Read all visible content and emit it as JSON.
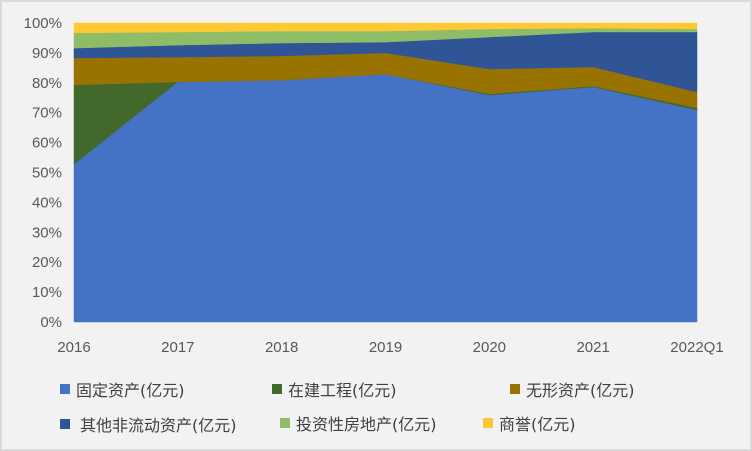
{
  "chart_data": {
    "type": "area",
    "stacked": "percent",
    "title": "",
    "xlabel": "",
    "ylabel": "",
    "ylim": [
      0,
      100
    ],
    "y_ticks": [
      "0%",
      "10%",
      "20%",
      "30%",
      "40%",
      "50%",
      "60%",
      "70%",
      "80%",
      "90%",
      "100%"
    ],
    "categories": [
      "2016",
      "2017",
      "2018",
      "2019",
      "2020",
      "2021",
      "2022Q1"
    ],
    "grid": false,
    "legend_position": "bottom",
    "series": [
      {
        "name": "固定资产(亿元)",
        "color": "#4472c4",
        "values": [
          52.8,
          80.3,
          80.9,
          82.9,
          75.9,
          78.6,
          70.9
        ]
      },
      {
        "name": "在建工程(亿元)",
        "color": "#43682b",
        "values": [
          26.5,
          0.0,
          0.0,
          0.0,
          0.4,
          0.3,
          0.7
        ]
      },
      {
        "name": "无形资产(亿元)",
        "color": "#997300",
        "values": [
          9.0,
          8.3,
          8.1,
          7.1,
          8.3,
          6.4,
          5.3
        ]
      },
      {
        "name": "其他非流动资产(亿元)",
        "color": "#2f5597",
        "values": [
          3.3,
          4.0,
          4.3,
          3.6,
          10.7,
          11.7,
          20.1
        ]
      },
      {
        "name": "投资性房地产(亿元)",
        "color": "#8fbc67",
        "values": [
          5.1,
          4.4,
          4.0,
          3.7,
          2.7,
          1.3,
          1.0
        ]
      },
      {
        "name": "商誉(亿元)",
        "color": "#ffc935",
        "values": [
          3.3,
          3.0,
          2.7,
          2.7,
          2.0,
          1.7,
          2.0
        ]
      }
    ]
  },
  "legend": {
    "rows": [
      [
        0,
        1,
        2
      ],
      [
        3,
        4,
        5
      ]
    ]
  }
}
